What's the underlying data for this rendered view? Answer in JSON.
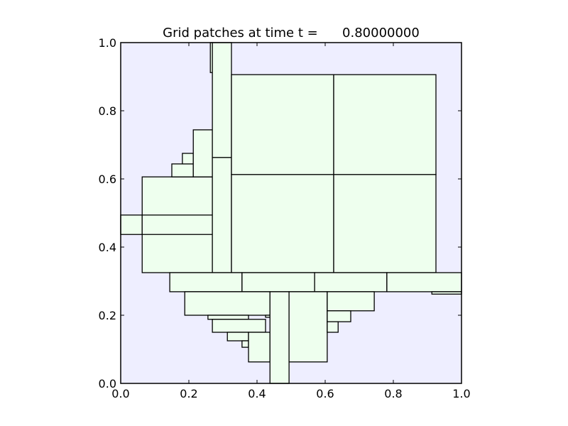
{
  "chart_data": {
    "type": "patches",
    "title": "Grid patches at time t =      0.80000000",
    "xlabel": "",
    "ylabel": "",
    "xlim": [
      0.0,
      1.0
    ],
    "ylim": [
      0.0,
      1.0
    ],
    "xticks": [
      "0.0",
      "0.2",
      "0.4",
      "0.6",
      "0.8",
      "1.0"
    ],
    "yticks": [
      "0.0",
      "0.2",
      "0.4",
      "0.6",
      "0.8",
      "1.0"
    ],
    "grid": false,
    "background_color": "#eeeeff",
    "patch_color": "#eeffee",
    "edge_color": "#000000",
    "patches": [
      {
        "x0": 0.0,
        "x1": 0.063,
        "y0": 0.437,
        "y1": 0.494
      },
      {
        "x0": 0.063,
        "x1": 0.269,
        "y0": 0.325,
        "y1": 0.606
      },
      {
        "x0": 0.063,
        "x1": 0.269,
        "y0": 0.437,
        "y1": 0.494
      },
      {
        "x0": 0.15,
        "x1": 0.213,
        "y0": 0.606,
        "y1": 0.644
      },
      {
        "x0": 0.181,
        "x1": 0.213,
        "y0": 0.644,
        "y1": 0.675
      },
      {
        "x0": 0.213,
        "x1": 0.269,
        "y0": 0.606,
        "y1": 0.744
      },
      {
        "x0": 0.263,
        "x1": 0.269,
        "y0": 0.912,
        "y1": 1.0
      },
      {
        "x0": 0.269,
        "x1": 0.325,
        "y0": 0.325,
        "y1": 0.663
      },
      {
        "x0": 0.269,
        "x1": 0.325,
        "y0": 0.663,
        "y1": 1.0
      },
      {
        "x0": 0.325,
        "x1": 0.625,
        "y0": 0.325,
        "y1": 0.613
      },
      {
        "x0": 0.625,
        "x1": 0.925,
        "y0": 0.325,
        "y1": 0.613
      },
      {
        "x0": 0.325,
        "x1": 0.625,
        "y0": 0.613,
        "y1": 0.906
      },
      {
        "x0": 0.625,
        "x1": 0.925,
        "y0": 0.613,
        "y1": 0.906
      },
      {
        "x0": 0.144,
        "x1": 0.356,
        "y0": 0.269,
        "y1": 0.325
      },
      {
        "x0": 0.356,
        "x1": 0.569,
        "y0": 0.269,
        "y1": 0.325
      },
      {
        "x0": 0.569,
        "x1": 0.781,
        "y0": 0.269,
        "y1": 0.325
      },
      {
        "x0": 0.781,
        "x1": 1.0,
        "y0": 0.269,
        "y1": 0.325
      },
      {
        "x0": 0.913,
        "x1": 1.0,
        "y0": 0.262,
        "y1": 0.269
      },
      {
        "x0": 0.188,
        "x1": 0.438,
        "y0": 0.2,
        "y1": 0.269
      },
      {
        "x0": 0.256,
        "x1": 0.375,
        "y0": 0.188,
        "y1": 0.2
      },
      {
        "x0": 0.269,
        "x1": 0.425,
        "y0": 0.15,
        "y1": 0.188
      },
      {
        "x0": 0.313,
        "x1": 0.375,
        "y0": 0.125,
        "y1": 0.15
      },
      {
        "x0": 0.356,
        "x1": 0.375,
        "y0": 0.106,
        "y1": 0.125
      },
      {
        "x0": 0.375,
        "x1": 0.438,
        "y0": 0.063,
        "y1": 0.15
      },
      {
        "x0": 0.425,
        "x1": 0.438,
        "y0": 0.194,
        "y1": 0.2
      },
      {
        "x0": 0.438,
        "x1": 0.494,
        "y0": 0.0,
        "y1": 0.269
      },
      {
        "x0": 0.494,
        "x1": 0.606,
        "y0": 0.063,
        "y1": 0.269
      },
      {
        "x0": 0.606,
        "x1": 0.744,
        "y0": 0.213,
        "y1": 0.269
      },
      {
        "x0": 0.606,
        "x1": 0.675,
        "y0": 0.181,
        "y1": 0.213
      },
      {
        "x0": 0.606,
        "x1": 0.638,
        "y0": 0.15,
        "y1": 0.181
      }
    ]
  }
}
